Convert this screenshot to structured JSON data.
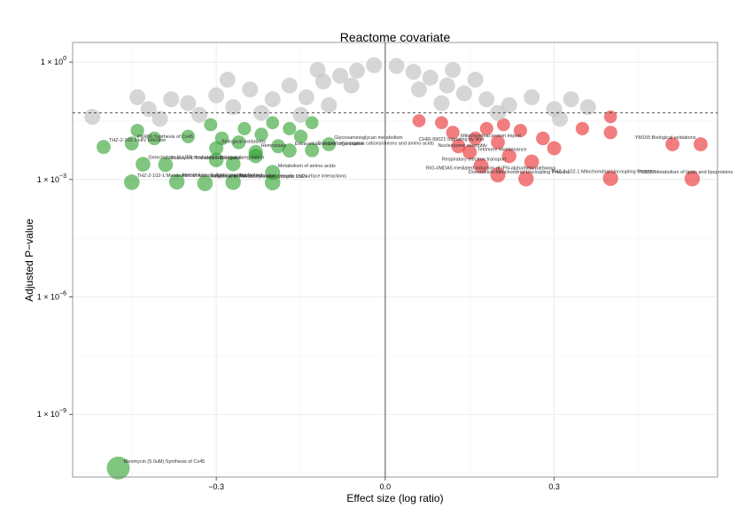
{
  "chart_data": {
    "type": "scatter",
    "title": "Reactome covariate",
    "xlabel": "Effect size (log ratio)",
    "ylabel": "Adjusted P−value",
    "x_ticks": [
      -0.3,
      0.0,
      0.3
    ],
    "x_tick_labels": [
      "−0.3",
      "0.0",
      "0.3"
    ],
    "y_scale": "log10",
    "y_ticks_log10": [
      0,
      -3,
      -6,
      -9
    ],
    "y_tick_labels": [
      {
        "base": "1 × 10",
        "exp": "0"
      },
      {
        "base": "1 × 10",
        "exp": "−3"
      },
      {
        "base": "1 × 10",
        "exp": "−6"
      },
      {
        "base": "1 × 10",
        "exp": "−9"
      }
    ],
    "xlim": [
      -0.555,
      0.59
    ],
    "ylim_log10": [
      0.5,
      -10.6
    ],
    "threshold_log10": -1.3,
    "grid": true,
    "legend": "none",
    "colors": {
      "down": "#2ca02c",
      "down_strong": "#0a8f0a",
      "up": "#e8262a",
      "nonsignificant": "#c8c8c8",
      "zero_line": "#555555",
      "threshold_line": "#222222"
    },
    "series": [
      {
        "group": "down",
        "points": [
          {
            "x": -0.474,
            "y": -10.37,
            "label": "Bleomycin (5.0uM):Synthesis of Cx45"
          },
          {
            "x": -0.45,
            "y": -3.07,
            "label": "THZ-2-102-1:Metabolism of water-soluble vitamins"
          },
          {
            "x": -0.37,
            "y": -3.06,
            "label": "Metabolism of vitamins and cofactors"
          },
          {
            "x": -0.32,
            "y": -3.1,
            "label": "Response to elevated platelet cytosolic Ca2+"
          },
          {
            "x": -0.27,
            "y": -3.07,
            "label": "Platelet activation"
          },
          {
            "x": -0.2,
            "y": -3.08,
            "label": "Integrin cell surface interactions"
          },
          {
            "x": -0.43,
            "y": -2.61,
            "label": "Gemcitabine:3'-UTR mediated translational regulation"
          },
          {
            "x": -0.39,
            "y": -2.62,
            "label": "Eukaryotic Translation Elongation"
          },
          {
            "x": -0.2,
            "y": -2.82,
            "label": "Metabolism of amino acids"
          },
          {
            "x": -0.13,
            "y": -2.25,
            "label": "Transport of inorganic cations/anions and amino acids"
          },
          {
            "x": -0.5,
            "y": -2.17,
            "label": "THZ-2-102-1:HIV Infection"
          },
          {
            "x": -0.45,
            "y": -2.08,
            "label": "PKR66:Synthesis of Cx45"
          },
          {
            "x": -0.3,
            "y": -2.2,
            "label": "Biological oxidations"
          },
          {
            "x": -0.23,
            "y": -2.3,
            "label": "Hemostasis"
          },
          {
            "x": -0.17,
            "y": -2.26,
            "label": "Extracellular matrix organization"
          },
          {
            "x": -0.1,
            "y": -2.1,
            "label": "Glycosaminoglycan metabolism"
          },
          {
            "x": -0.3,
            "y": -2.5,
            "label": ""
          },
          {
            "x": -0.27,
            "y": -2.6,
            "label": ""
          },
          {
            "x": -0.23,
            "y": -2.4,
            "label": ""
          },
          {
            "x": -0.19,
            "y": -2.15,
            "label": ""
          },
          {
            "x": -0.15,
            "y": -1.9,
            "label": ""
          },
          {
            "x": -0.25,
            "y": -1.7,
            "label": ""
          },
          {
            "x": -0.2,
            "y": -1.55,
            "label": ""
          },
          {
            "x": -0.13,
            "y": -1.55,
            "label": ""
          },
          {
            "x": -0.44,
            "y": -1.75,
            "label": ""
          },
          {
            "x": -0.41,
            "y": -1.95,
            "label": ""
          },
          {
            "x": -0.35,
            "y": -1.9,
            "label": ""
          },
          {
            "x": -0.31,
            "y": -1.6,
            "label": ""
          },
          {
            "x": -0.22,
            "y": -1.85,
            "label": ""
          },
          {
            "x": -0.17,
            "y": -1.7,
            "label": ""
          },
          {
            "x": -0.26,
            "y": -2.05,
            "label": ""
          },
          {
            "x": -0.29,
            "y": -1.95,
            "label": ""
          }
        ]
      },
      {
        "group": "up",
        "points": [
          {
            "x": 0.25,
            "y": -2.98,
            "label": "Doxorubicin:Mitochondrial Uncoupling Proteins"
          },
          {
            "x": 0.4,
            "y": -2.97,
            "label": "THZ-2-102-1:Mitochondrial Uncoupling Proteins"
          },
          {
            "x": 0.545,
            "y": -2.98,
            "label": "YM155:Metabolism of lipids and lipoproteins"
          },
          {
            "x": 0.2,
            "y": -2.88,
            "label": "RIG-I/MDA5 mediated induction of IFN-alpha/beta pathways"
          },
          {
            "x": 0.17,
            "y": -2.65,
            "label": "Respiratory electron transport"
          },
          {
            "x": 0.22,
            "y": -2.4,
            "label": "Telomere Maintenance"
          },
          {
            "x": 0.15,
            "y": -2.3,
            "label": "Nucleosome assembly"
          },
          {
            "x": 0.13,
            "y": -2.15,
            "label": "CHIR-99021:Signaling by Wnt"
          },
          {
            "x": 0.2,
            "y": -2.05,
            "label": "Mitochondrial protein import"
          },
          {
            "x": 0.51,
            "y": -2.1,
            "label": "YM155:Biological oxidations"
          },
          {
            "x": 0.56,
            "y": -2.1,
            "label": ""
          },
          {
            "x": 0.4,
            "y": -1.8,
            "label": ""
          },
          {
            "x": 0.4,
            "y": -1.4,
            "label": ""
          },
          {
            "x": 0.35,
            "y": -1.7,
            "label": ""
          },
          {
            "x": 0.3,
            "y": -2.2,
            "label": ""
          },
          {
            "x": 0.28,
            "y": -1.95,
            "label": ""
          },
          {
            "x": 0.26,
            "y": -2.55,
            "label": ""
          },
          {
            "x": 0.24,
            "y": -1.75,
            "label": ""
          },
          {
            "x": 0.18,
            "y": -1.7,
            "label": ""
          },
          {
            "x": 0.12,
            "y": -1.8,
            "label": ""
          },
          {
            "x": 0.1,
            "y": -1.55,
            "label": ""
          },
          {
            "x": 0.06,
            "y": -1.5,
            "label": ""
          },
          {
            "x": 0.16,
            "y": -1.95,
            "label": ""
          },
          {
            "x": 0.21,
            "y": -1.6,
            "label": ""
          }
        ]
      },
      {
        "group": "nonsignificant",
        "points": [
          {
            "x": -0.52,
            "y": -1.4,
            "label": ""
          },
          {
            "x": -0.44,
            "y": -0.9,
            "label": ""
          },
          {
            "x": -0.42,
            "y": -1.2,
            "label": ""
          },
          {
            "x": -0.38,
            "y": -0.95,
            "label": ""
          },
          {
            "x": -0.35,
            "y": -1.05,
            "label": ""
          },
          {
            "x": -0.3,
            "y": -0.85,
            "label": ""
          },
          {
            "x": -0.27,
            "y": -1.15,
            "label": ""
          },
          {
            "x": -0.24,
            "y": -0.7,
            "label": ""
          },
          {
            "x": -0.2,
            "y": -0.95,
            "label": ""
          },
          {
            "x": -0.17,
            "y": -0.6,
            "label": ""
          },
          {
            "x": -0.14,
            "y": -0.9,
            "label": ""
          },
          {
            "x": -0.11,
            "y": -0.5,
            "label": ""
          },
          {
            "x": -0.08,
            "y": -0.35,
            "label": ""
          },
          {
            "x": -0.05,
            "y": -0.22,
            "label": ""
          },
          {
            "x": -0.02,
            "y": -0.08,
            "label": ""
          },
          {
            "x": 0.02,
            "y": -0.1,
            "label": ""
          },
          {
            "x": 0.05,
            "y": -0.25,
            "label": ""
          },
          {
            "x": 0.08,
            "y": -0.4,
            "label": ""
          },
          {
            "x": 0.11,
            "y": -0.6,
            "label": ""
          },
          {
            "x": 0.14,
            "y": -0.8,
            "label": ""
          },
          {
            "x": 0.18,
            "y": -0.95,
            "label": ""
          },
          {
            "x": 0.22,
            "y": -1.1,
            "label": ""
          },
          {
            "x": 0.26,
            "y": -0.9,
            "label": ""
          },
          {
            "x": 0.3,
            "y": -1.2,
            "label": ""
          },
          {
            "x": 0.33,
            "y": -0.95,
            "label": ""
          },
          {
            "x": 0.36,
            "y": -1.15,
            "label": ""
          },
          {
            "x": 0.31,
            "y": -1.45,
            "label": ""
          },
          {
            "x": 0.2,
            "y": -1.3,
            "label": ""
          },
          {
            "x": 0.1,
            "y": -1.05,
            "label": ""
          },
          {
            "x": -0.1,
            "y": -1.1,
            "label": ""
          },
          {
            "x": -0.22,
            "y": -1.3,
            "label": ""
          },
          {
            "x": -0.33,
            "y": -1.35,
            "label": ""
          },
          {
            "x": -0.4,
            "y": -1.45,
            "label": ""
          },
          {
            "x": -0.15,
            "y": -1.35,
            "label": ""
          },
          {
            "x": -0.06,
            "y": -0.6,
            "label": ""
          },
          {
            "x": 0.06,
            "y": -0.7,
            "label": ""
          },
          {
            "x": 0.16,
            "y": -0.45,
            "label": ""
          },
          {
            "x": -0.28,
            "y": -0.45,
            "label": ""
          },
          {
            "x": -0.12,
            "y": -0.2,
            "label": ""
          },
          {
            "x": 0.12,
            "y": -0.2,
            "label": ""
          }
        ]
      }
    ]
  }
}
